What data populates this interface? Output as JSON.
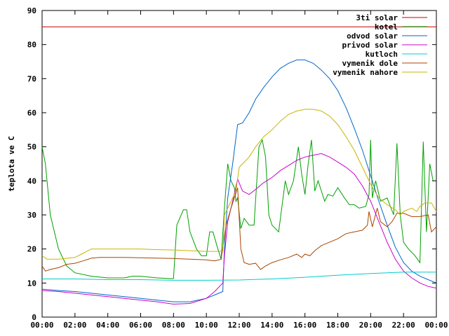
{
  "chart_data": {
    "type": "line",
    "ylabel": "teplota ve C",
    "xlabel": "",
    "xlim": [
      0,
      24
    ],
    "ylim": [
      0,
      90
    ],
    "y_ticks": [
      0,
      10,
      20,
      30,
      40,
      50,
      60,
      70,
      80,
      90
    ],
    "x_ticks": [
      0,
      2,
      4,
      6,
      8,
      10,
      12,
      14,
      16,
      18,
      20,
      22,
      24
    ],
    "x_tick_labels": [
      "00:00",
      "02:00",
      "04:00",
      "06:00",
      "08:00",
      "10:00",
      "12:00",
      "14:00",
      "16:00",
      "18:00",
      "20:00",
      "22:00",
      "00:00"
    ],
    "legend_position": "top-right",
    "grid": false,
    "series": [
      {
        "name": "3ti solar",
        "color": "#cc0000",
        "points": [
          [
            0,
            85.2
          ],
          [
            24,
            85.2
          ]
        ]
      },
      {
        "name": "kotel",
        "color": "#00a000",
        "points": [
          [
            0,
            50
          ],
          [
            0.2,
            45
          ],
          [
            0.5,
            30
          ],
          [
            1,
            20
          ],
          [
            1.5,
            15
          ],
          [
            2,
            13
          ],
          [
            3,
            12
          ],
          [
            4,
            11.5
          ],
          [
            5,
            11.5
          ],
          [
            5.5,
            12
          ],
          [
            6,
            12
          ],
          [
            7,
            11.5
          ],
          [
            7.8,
            11.3
          ],
          [
            8,
            11.3
          ],
          [
            8.2,
            27
          ],
          [
            8.6,
            31.5
          ],
          [
            8.8,
            31.5
          ],
          [
            9,
            25
          ],
          [
            9.4,
            20
          ],
          [
            9.7,
            18
          ],
          [
            10,
            18
          ],
          [
            10.2,
            25
          ],
          [
            10.4,
            25
          ],
          [
            10.7,
            20
          ],
          [
            10.9,
            17
          ],
          [
            11.1,
            32
          ],
          [
            11.3,
            45
          ],
          [
            11.5,
            40
          ],
          [
            11.7,
            38
          ],
          [
            11.8,
            34
          ],
          [
            11.9,
            35
          ],
          [
            12.1,
            26
          ],
          [
            12.3,
            29
          ],
          [
            12.6,
            27
          ],
          [
            12.9,
            27
          ],
          [
            13.2,
            50
          ],
          [
            13.4,
            52
          ],
          [
            13.6,
            47
          ],
          [
            13.8,
            30
          ],
          [
            14,
            27
          ],
          [
            14.4,
            25
          ],
          [
            14.8,
            40
          ],
          [
            15,
            36
          ],
          [
            15.3,
            40
          ],
          [
            15.6,
            50
          ],
          [
            15.8,
            42
          ],
          [
            16,
            36
          ],
          [
            16.2,
            45
          ],
          [
            16.4,
            52
          ],
          [
            16.6,
            37
          ],
          [
            16.8,
            40
          ],
          [
            17,
            37
          ],
          [
            17.2,
            34
          ],
          [
            17.4,
            36
          ],
          [
            17.7,
            35.5
          ],
          [
            18,
            38
          ],
          [
            18.4,
            35
          ],
          [
            18.7,
            33
          ],
          [
            19,
            33
          ],
          [
            19.3,
            32
          ],
          [
            19.7,
            32.5
          ],
          [
            19.9,
            36
          ],
          [
            20,
            52
          ],
          [
            20.1,
            35
          ],
          [
            20.3,
            40
          ],
          [
            20.6,
            34
          ],
          [
            21,
            35
          ],
          [
            21.4,
            30
          ],
          [
            21.6,
            51
          ],
          [
            21.8,
            30
          ],
          [
            22,
            22
          ],
          [
            22.3,
            20
          ],
          [
            22.7,
            18
          ],
          [
            23,
            16
          ],
          [
            23.2,
            51.5
          ],
          [
            23.4,
            25
          ],
          [
            23.6,
            45
          ],
          [
            23.8,
            40
          ]
        ]
      },
      {
        "name": "odvod solar",
        "color": "#0066cc",
        "points": [
          [
            0,
            8.2
          ],
          [
            1,
            7.8
          ],
          [
            2,
            7.5
          ],
          [
            3,
            7
          ],
          [
            4,
            6.5
          ],
          [
            5,
            6
          ],
          [
            6,
            5.5
          ],
          [
            7,
            5
          ],
          [
            8,
            4.5
          ],
          [
            9,
            4.5
          ],
          [
            10,
            5.5
          ],
          [
            10.5,
            6.5
          ],
          [
            11,
            7.5
          ],
          [
            11.1,
            20
          ],
          [
            11.3,
            35
          ],
          [
            11.6,
            45
          ],
          [
            11.9,
            56.5
          ],
          [
            12.2,
            57
          ],
          [
            12.6,
            60
          ],
          [
            13,
            64
          ],
          [
            13.5,
            67.5
          ],
          [
            14,
            70.5
          ],
          [
            14.5,
            73
          ],
          [
            15,
            74.5
          ],
          [
            15.5,
            75.5
          ],
          [
            16,
            75.5
          ],
          [
            16.5,
            74.5
          ],
          [
            17,
            72.5
          ],
          [
            17.5,
            70
          ],
          [
            18,
            66.5
          ],
          [
            18.5,
            61.5
          ],
          [
            19,
            55.5
          ],
          [
            19.5,
            49
          ],
          [
            20,
            41.5
          ],
          [
            20.5,
            34
          ],
          [
            21,
            27
          ],
          [
            21.5,
            20.5
          ],
          [
            22,
            16
          ],
          [
            22.5,
            13.5
          ],
          [
            23,
            12
          ],
          [
            23.5,
            11
          ],
          [
            24,
            10
          ]
        ]
      },
      {
        "name": "privod solar",
        "color": "#cc00cc",
        "points": [
          [
            0,
            7.8
          ],
          [
            1,
            7.5
          ],
          [
            2,
            7
          ],
          [
            3,
            6.5
          ],
          [
            4,
            6
          ],
          [
            5,
            5.5
          ],
          [
            6,
            5
          ],
          [
            7,
            4.5
          ],
          [
            8,
            3.8
          ],
          [
            9,
            4
          ],
          [
            10,
            5.5
          ],
          [
            10.5,
            7.5
          ],
          [
            11,
            10
          ],
          [
            11.1,
            18
          ],
          [
            11.3,
            28
          ],
          [
            11.6,
            34
          ],
          [
            11.9,
            40.5
          ],
          [
            12.2,
            37
          ],
          [
            12.6,
            36
          ],
          [
            13,
            37.5
          ],
          [
            13.5,
            39.5
          ],
          [
            14,
            41
          ],
          [
            14.5,
            43
          ],
          [
            15,
            44.5
          ],
          [
            15.5,
            46
          ],
          [
            16,
            47
          ],
          [
            16.5,
            47.5
          ],
          [
            17,
            48
          ],
          [
            17.5,
            47
          ],
          [
            18,
            45.5
          ],
          [
            18.5,
            44
          ],
          [
            19,
            42
          ],
          [
            19.5,
            38.5
          ],
          [
            20,
            34
          ],
          [
            20.5,
            28
          ],
          [
            21,
            22
          ],
          [
            21.5,
            17
          ],
          [
            22,
            13.5
          ],
          [
            22.5,
            11.5
          ],
          [
            23,
            10
          ],
          [
            23.5,
            9
          ],
          [
            24,
            8.5
          ]
        ]
      },
      {
        "name": "kutloch",
        "color": "#00cccc",
        "points": [
          [
            0,
            11.2
          ],
          [
            2,
            11.2
          ],
          [
            4,
            11
          ],
          [
            6,
            11
          ],
          [
            8,
            10.8
          ],
          [
            10,
            10.8
          ],
          [
            12,
            10.9
          ],
          [
            14,
            11.2
          ],
          [
            16,
            11.7
          ],
          [
            18,
            12.3
          ],
          [
            20,
            12.8
          ],
          [
            22,
            13.2
          ],
          [
            24,
            13.2
          ]
        ]
      },
      {
        "name": "vymenik dole",
        "color": "#aa4400",
        "points": [
          [
            0,
            15
          ],
          [
            0.2,
            13.5
          ],
          [
            0.5,
            14
          ],
          [
            1,
            14.5
          ],
          [
            1.5,
            15.5
          ],
          [
            2,
            15.8
          ],
          [
            2.5,
            16.5
          ],
          [
            3,
            17.3
          ],
          [
            3.5,
            17.5
          ],
          [
            4,
            17.5
          ],
          [
            5,
            17.5
          ],
          [
            6,
            17.4
          ],
          [
            7,
            17.3
          ],
          [
            8,
            17.2
          ],
          [
            9,
            17
          ],
          [
            10,
            16.8
          ],
          [
            10.5,
            16.5
          ],
          [
            10.9,
            17
          ],
          [
            11.2,
            27
          ],
          [
            11.5,
            32
          ],
          [
            11.9,
            38
          ],
          [
            12.1,
            20
          ],
          [
            12.3,
            16
          ],
          [
            12.6,
            15.5
          ],
          [
            13,
            15.8
          ],
          [
            13.3,
            14
          ],
          [
            13.6,
            15
          ],
          [
            14,
            16
          ],
          [
            14.5,
            16.8
          ],
          [
            15,
            17.5
          ],
          [
            15.5,
            18.5
          ],
          [
            15.8,
            17.5
          ],
          [
            16,
            18.5
          ],
          [
            16.3,
            18
          ],
          [
            16.6,
            19.5
          ],
          [
            17,
            21
          ],
          [
            17.5,
            22
          ],
          [
            18,
            23
          ],
          [
            18.5,
            24.5
          ],
          [
            19,
            25
          ],
          [
            19.5,
            25.5
          ],
          [
            19.8,
            27
          ],
          [
            19.9,
            31
          ],
          [
            20.1,
            26.5
          ],
          [
            20.4,
            32
          ],
          [
            20.6,
            28
          ],
          [
            21,
            26.5
          ],
          [
            21.3,
            28
          ],
          [
            21.6,
            30.5
          ],
          [
            22,
            30.5
          ],
          [
            22.5,
            29.5
          ],
          [
            23,
            29.5
          ],
          [
            23.5,
            30
          ],
          [
            23.7,
            25
          ],
          [
            24,
            26.5
          ]
        ]
      },
      {
        "name": "vymenik nahore",
        "color": "#c8b400",
        "points": [
          [
            0,
            18
          ],
          [
            0.3,
            17
          ],
          [
            1,
            17
          ],
          [
            2,
            17.5
          ],
          [
            2.4,
            18.5
          ],
          [
            2.8,
            19.5
          ],
          [
            3,
            20
          ],
          [
            4,
            20
          ],
          [
            5,
            20
          ],
          [
            6,
            20
          ],
          [
            7,
            19.8
          ],
          [
            8,
            19.7
          ],
          [
            9,
            19.5
          ],
          [
            10,
            19.3
          ],
          [
            11,
            19.3
          ],
          [
            11.1,
            30
          ],
          [
            11.4,
            33
          ],
          [
            11.8,
            37
          ],
          [
            12,
            44
          ],
          [
            12.3,
            45.5
          ],
          [
            12.6,
            47
          ],
          [
            13,
            50
          ],
          [
            13.5,
            53
          ],
          [
            14,
            55
          ],
          [
            14.5,
            57.5
          ],
          [
            15,
            59.5
          ],
          [
            15.5,
            60.5
          ],
          [
            16,
            61
          ],
          [
            16.5,
            61
          ],
          [
            17,
            60.5
          ],
          [
            17.5,
            59
          ],
          [
            18,
            56.5
          ],
          [
            18.5,
            53
          ],
          [
            19,
            49
          ],
          [
            19.5,
            44
          ],
          [
            20,
            39
          ],
          [
            20.5,
            35
          ],
          [
            21,
            33
          ],
          [
            21.5,
            31.5
          ],
          [
            21.8,
            30
          ],
          [
            22,
            31
          ],
          [
            22.5,
            32
          ],
          [
            22.8,
            31
          ],
          [
            23,
            32.5
          ],
          [
            23.3,
            33.5
          ],
          [
            23.7,
            33.5
          ],
          [
            24,
            31
          ]
        ]
      }
    ]
  }
}
